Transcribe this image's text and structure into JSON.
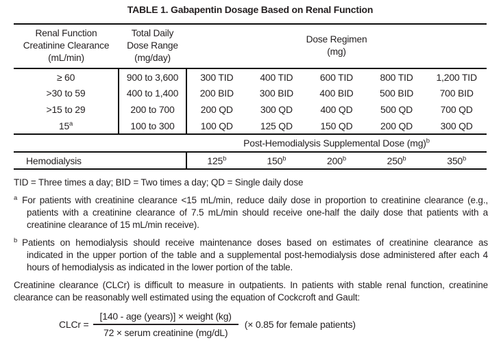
{
  "title": "TABLE 1. Gabapentin Dosage Based on Renal Function",
  "table": {
    "header": {
      "renal_lines": [
        "Renal Function",
        "Creatinine Clearance",
        "(mL/min)"
      ],
      "dose_range_lines": [
        "Total Daily",
        "Dose Range",
        "(mg/day)"
      ],
      "regimen_lines": [
        "Dose Regimen",
        "(mg)"
      ]
    },
    "rows": [
      {
        "clcr": "≥ 60",
        "range": "900 to 3,600",
        "doses": [
          "300 TID",
          "400 TID",
          "600 TID",
          "800 TID",
          "1,200 TID"
        ]
      },
      {
        "clcr": ">30 to 59",
        "range": "400 to 1,400",
        "doses": [
          "200 BID",
          "300 BID",
          "400 BID",
          "500 BID",
          "700 BID"
        ]
      },
      {
        "clcr": ">15 to 29",
        "range": "200 to 700",
        "doses": [
          "200 QD",
          "300 QD",
          "400 QD",
          "500 QD",
          "700 QD"
        ]
      },
      {
        "clcr": "15",
        "clcr_sup": "a",
        "range": "100 to 300",
        "doses": [
          "100 QD",
          "125 QD",
          "150 QD",
          "200 QD",
          "300 QD"
        ]
      }
    ],
    "post_hemodialysis": {
      "label": "Post-Hemodialysis Supplemental Dose (mg)",
      "sup": "b"
    },
    "hemodialysis": {
      "label": "Hemodialysis",
      "doses": [
        "125",
        "150",
        "200",
        "250",
        "350"
      ],
      "dose_sup": "b"
    }
  },
  "footnotes": {
    "abbreviations": "TID = Three times a day; BID = Two times a day; QD = Single daily dose",
    "a": {
      "marker": "a",
      "text": "For patients with creatinine clearance <15 mL/min, reduce daily dose in proportion to creatinine clearance (e.g., patients with a creatinine clearance of 7.5 mL/min should receive one-half the daily dose that patients with a creatinine clearance of 15 mL/min receive)."
    },
    "b": {
      "marker": "b",
      "text": "Patients on hemodialysis should receive maintenance doses based on estimates of creatinine clearance as indicated in the upper portion of the table and a supplemental post-hemodialysis dose administered after each 4 hours of hemodialysis as indicated in the lower portion of the table."
    }
  },
  "body_text": "Creatinine clearance (CLCr) is difficult to measure in outpatients. In patients with stable renal function, creatinine clearance can be reasonably well estimated using the equation of Cockcroft and Gault:",
  "formula": {
    "lhs": "CLCr =",
    "numerator": "[140 - age (years)] × weight (kg)",
    "denominator": "72 × serum creatinine (mg/dL)",
    "suffix": "(× 0.85 for female patients)"
  },
  "colors": {
    "text": "#231f20",
    "rule": "#0d0d0d",
    "background": "#ffffff"
  }
}
